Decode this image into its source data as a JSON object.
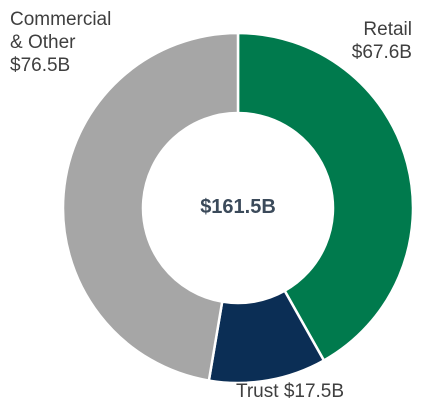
{
  "chart_data": {
    "type": "donut",
    "categories": [
      "Retail",
      "Trust",
      "Commercial & Other"
    ],
    "values": [
      67.6,
      17.5,
      76.5
    ],
    "value_labels": [
      "$67.6B",
      "$17.5B",
      "$76.5B"
    ],
    "colors": [
      "#007a4d",
      "#0b2e55",
      "#a6a6a6"
    ],
    "total": 161.5,
    "total_label": "$161.5B"
  }
}
